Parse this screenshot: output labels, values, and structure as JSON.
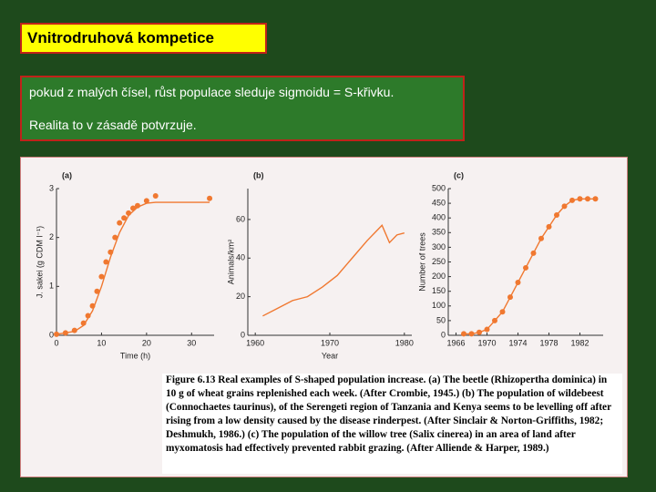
{
  "title": "Vnitrodruhová kompetice",
  "text": [
    "pokud z malých čísel, růst populace sleduje sigmoidu = S-křivku.",
    "Realita to v zásadě potvrzuje."
  ],
  "figure": {
    "caption": "Figure 6.13  Real examples of S-shaped population increase. (a) The beetle (Rhizopertha dominica) in 10 g of wheat grains replenished each week. (After Crombie, 1945.) (b) The population of wildebeest (Connochaetes taurinus), of the Serengeti region of Tanzania and Kenya seems to be levelling off after rising from a low density caused by the disease rinderpest. (After Sinclair & Norton-Griffiths, 1982; Deshmukh, 1986.) (c) The population of the willow tree (Salix cinerea) in an area of land after myxomatosis had effectively prevented rabbit grazing. (After Alliende & Harper, 1989.)"
  },
  "chart_data": [
    {
      "type": "scatter",
      "panel": "(a)",
      "xlabel": "Time (h)",
      "ylabel": "J. sakei (g CDM l⁻¹)",
      "color": "#f07830",
      "x": [
        0,
        2,
        4,
        6,
        7,
        8,
        9,
        10,
        11,
        12,
        13,
        14,
        15,
        16,
        17,
        18,
        20,
        22,
        34
      ],
      "values": [
        0.02,
        0.05,
        0.1,
        0.25,
        0.4,
        0.6,
        0.9,
        1.2,
        1.5,
        1.7,
        2.0,
        2.3,
        2.4,
        2.5,
        2.6,
        2.65,
        2.75,
        2.85,
        2.8
      ],
      "fit": {
        "x": [
          0,
          4,
          6,
          8,
          10,
          12,
          14,
          16,
          18,
          20,
          22,
          34
        ],
        "values": [
          0.02,
          0.08,
          0.2,
          0.5,
          1.0,
          1.6,
          2.1,
          2.45,
          2.62,
          2.7,
          2.72,
          2.72
        ]
      },
      "xlim": [
        0,
        35
      ],
      "xticks": [
        0,
        10,
        20,
        30
      ],
      "ylim": [
        0,
        3
      ],
      "yticks": [
        0,
        1,
        2,
        3
      ]
    },
    {
      "type": "line",
      "panel": "(b)",
      "xlabel": "Year",
      "ylabel": "Animals/km²",
      "color": "#f07830",
      "x": [
        1961,
        1963,
        1965,
        1967,
        1969,
        1971,
        1973,
        1975,
        1977,
        1978,
        1979,
        1980
      ],
      "values": [
        10,
        14,
        18,
        20,
        25,
        31,
        40,
        49,
        57,
        48,
        52,
        53
      ],
      "xlim": [
        1959,
        1981
      ],
      "xticks": [
        1960,
        1970,
        1980
      ],
      "ylim": [
        0,
        76
      ],
      "yticks": [
        0,
        20,
        40,
        60
      ]
    },
    {
      "type": "line",
      "panel": "(c)",
      "ylabel": "Number of trees",
      "color": "#f07830",
      "markers": true,
      "x": [
        1967,
        1968,
        1969,
        1970,
        1971,
        1972,
        1973,
        1974,
        1975,
        1976,
        1977,
        1978,
        1979,
        1980,
        1981,
        1982,
        1983,
        1984
      ],
      "values": [
        5,
        5,
        10,
        20,
        50,
        80,
        130,
        180,
        230,
        280,
        330,
        370,
        410,
        440,
        460,
        465,
        465,
        465
      ],
      "xlim": [
        1965,
        1985
      ],
      "xticks": [
        1966,
        1970,
        1974,
        1978,
        1982
      ],
      "ylim": [
        0,
        500
      ],
      "yticks": [
        0,
        50,
        100,
        150,
        200,
        250,
        300,
        350,
        400,
        450,
        500
      ]
    }
  ]
}
